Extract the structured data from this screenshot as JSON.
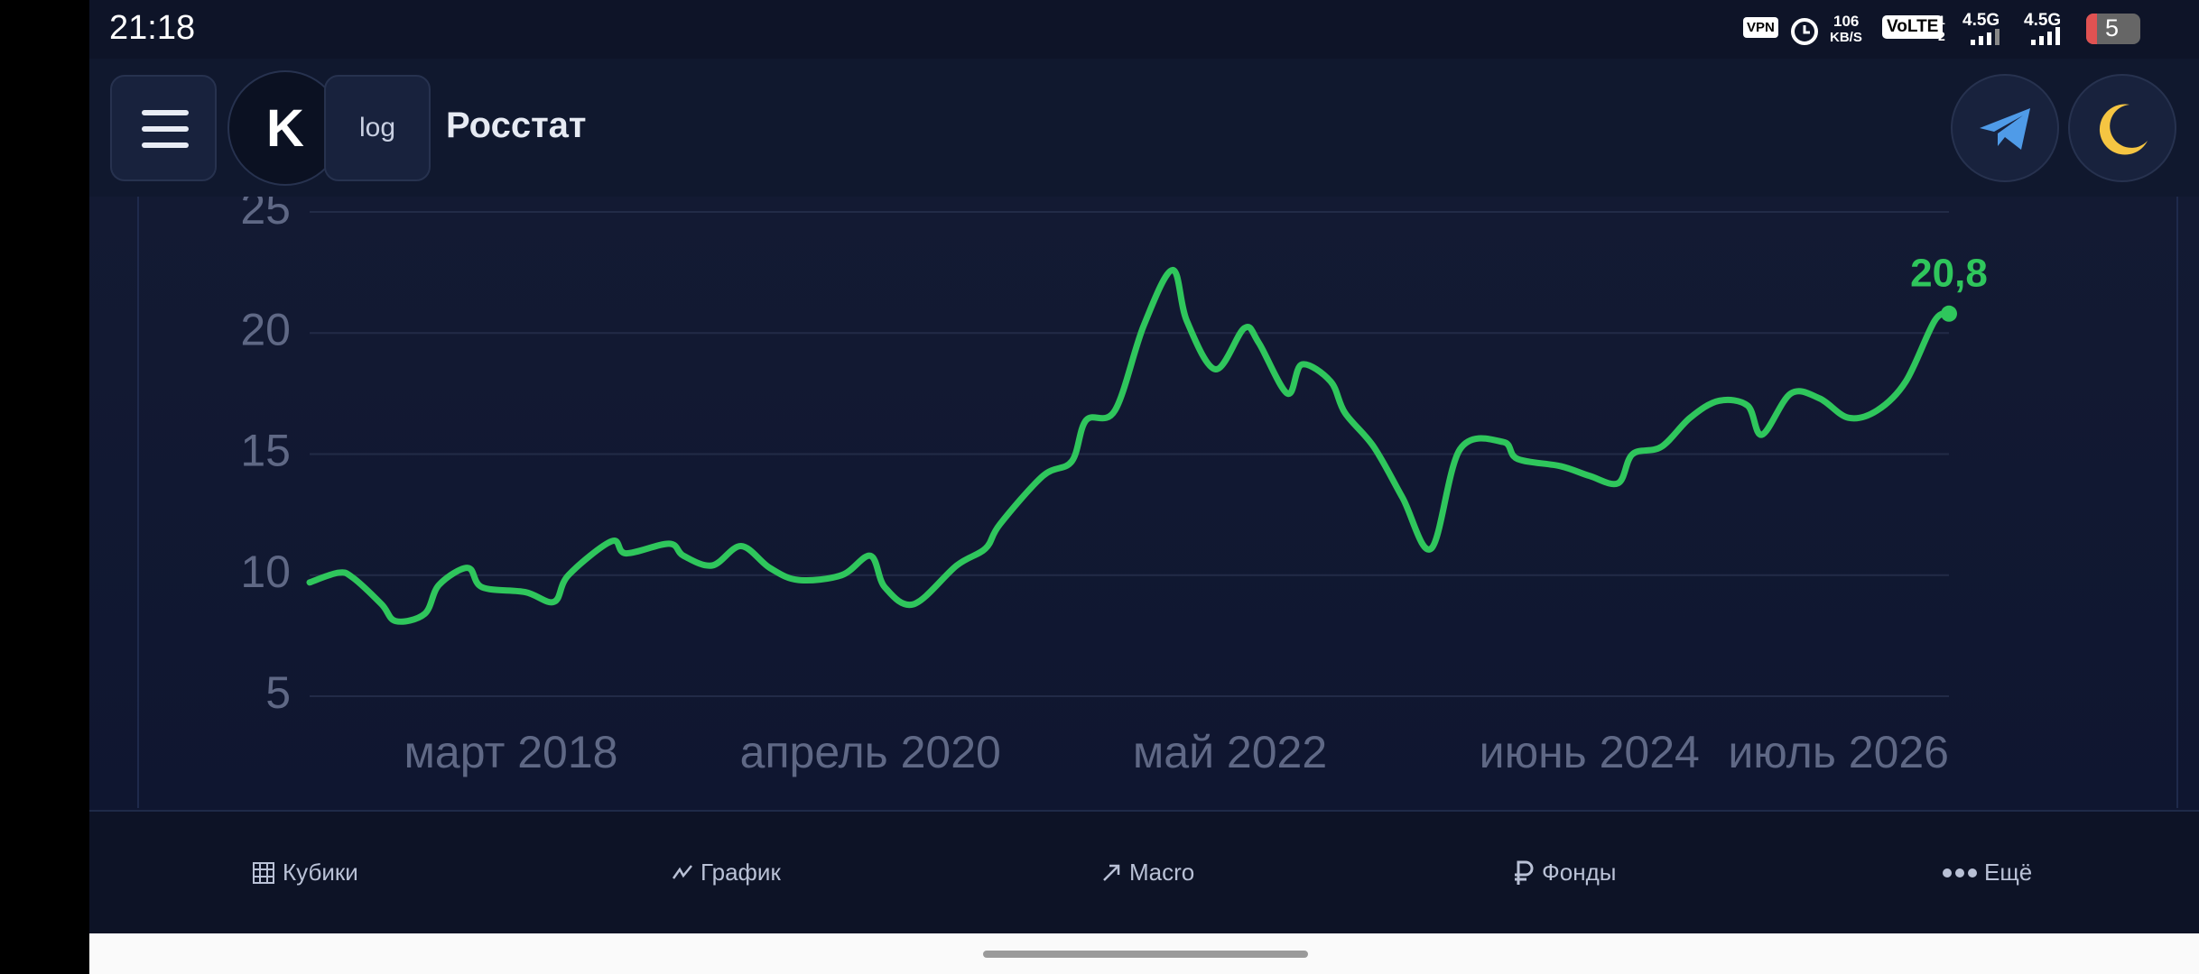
{
  "status": {
    "time": "21:18",
    "vpn": "VPN",
    "speed": "106",
    "speed_unit": "KB/S",
    "volte": "VoLTE",
    "sim": [
      "1",
      "2"
    ],
    "network": [
      "4.5G",
      "4.5G"
    ],
    "battery": "5"
  },
  "header": {
    "logo_letter": "K",
    "log_button": "log",
    "title": "Росстат"
  },
  "chart_data": {
    "type": "line",
    "color": "#2fc65c",
    "grid": true,
    "x": [
      "2017-01",
      "2017-03",
      "2017-04",
      "2017-06",
      "2017-07",
      "2017-09",
      "2017-10",
      "2017-12",
      "2018-01",
      "2018-04",
      "2018-06",
      "2018-07",
      "2018-10",
      "2018-11",
      "2019-02",
      "2019-03",
      "2019-05",
      "2019-07",
      "2019-09",
      "2019-11",
      "2020-02",
      "2020-04",
      "2020-05",
      "2020-07",
      "2020-10",
      "2020-12",
      "2021-01",
      "2021-04",
      "2021-06",
      "2021-07",
      "2021-09",
      "2021-11",
      "2022-01",
      "2022-02",
      "2022-04",
      "2022-06",
      "2022-07",
      "2022-09",
      "2022-10",
      "2022-12",
      "2023-01",
      "2023-03",
      "2023-05",
      "2023-07",
      "2023-09",
      "2023-12",
      "2024-01",
      "2024-04",
      "2024-06",
      "2024-08",
      "2024-09",
      "2024-11",
      "2025-01",
      "2025-03",
      "2025-05",
      "2025-06",
      "2025-08",
      "2025-10",
      "2025-12",
      "2026-02",
      "2026-04",
      "2026-06",
      "2026-07"
    ],
    "values": [
      9.7,
      10.1,
      9.9,
      8.8,
      8.1,
      8.4,
      9.6,
      10.3,
      9.5,
      9.3,
      8.9,
      10.0,
      11.4,
      10.9,
      11.3,
      10.8,
      10.4,
      11.2,
      10.3,
      9.8,
      10.0,
      10.8,
      9.5,
      8.8,
      10.4,
      11.1,
      12.1,
      14.1,
      14.7,
      16.4,
      16.8,
      20.3,
      22.6,
      20.5,
      18.5,
      20.2,
      19.6,
      17.5,
      18.7,
      18.0,
      16.7,
      15.3,
      13.2,
      11.1,
      15.2,
      15.5,
      14.8,
      14.5,
      14.1,
      13.8,
      15.0,
      15.3,
      16.5,
      17.2,
      17.0,
      15.8,
      17.5,
      17.3,
      16.5,
      16.8,
      18.0,
      20.5,
      20.8
    ],
    "value_labels": [
      null,
      null,
      null,
      null,
      null,
      null,
      null,
      null,
      null,
      null,
      null,
      null,
      null,
      null,
      null,
      null,
      null,
      null,
      null,
      null,
      null,
      null,
      null,
      null,
      null,
      null,
      null,
      null,
      null,
      null,
      null,
      null,
      null,
      null,
      null,
      null,
      null,
      null,
      null,
      null,
      null,
      null,
      null,
      null,
      null,
      null,
      null,
      null,
      null,
      null,
      null,
      null,
      null,
      null,
      null,
      null,
      null,
      null,
      null,
      null,
      null,
      null,
      "20,8"
    ],
    "xlim": [
      "2017-01",
      "2026-07"
    ],
    "xticks": [
      {
        "value": "2018-03",
        "label": "март 2018"
      },
      {
        "value": "2020-04",
        "label": "апрель 2020"
      },
      {
        "value": "2022-05",
        "label": "май 2022"
      },
      {
        "value": "2024-06",
        "label": "июнь 2024"
      },
      {
        "value": "2026-07",
        "label": "июль 2026"
      }
    ],
    "ylim": [
      5,
      25
    ],
    "yticks": [
      5,
      10,
      15,
      20,
      25
    ]
  },
  "nav": [
    "Кубики",
    "График",
    "Macro",
    "Фонды",
    "Ещё"
  ]
}
